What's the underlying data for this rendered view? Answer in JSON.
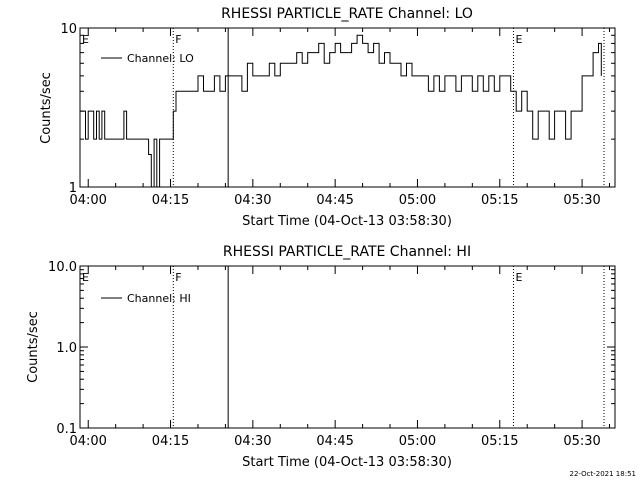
{
  "chart_data": [
    {
      "type": "line",
      "title": "RHESSI PARTICLE_RATE Channel: LO",
      "xlabel": "Start Time (04-Oct-13 03:58:30)",
      "ylabel": "Counts/sec",
      "yscale": "log",
      "ylim": [
        1,
        10
      ],
      "y_ticks": [
        "1",
        "10"
      ],
      "x_ticks": [
        "04:00",
        "04:15",
        "04:30",
        "04:45",
        "05:00",
        "05:15",
        "05:30"
      ],
      "xlim": [
        "03:58:30",
        "05:36:00"
      ],
      "legend": "Channel: LO",
      "legend_position": "top-left",
      "markers": [
        {
          "label": "E",
          "time": "03:58:30",
          "style": "dotted"
        },
        {
          "label": "F",
          "time": "04:15:30",
          "style": "dotted"
        },
        {
          "label": "",
          "time": "04:25:30",
          "style": "solid"
        },
        {
          "label": "E",
          "time": "05:17:30",
          "style": "dotted"
        },
        {
          "label": "",
          "time": "05:34:00",
          "style": "dotted"
        }
      ],
      "series": [
        {
          "name": "Channel: LO",
          "x": [
            "03:58:30",
            "03:59:00",
            "03:59:30",
            "04:00:00",
            "04:00:30",
            "04:01:00",
            "04:01:30",
            "04:02:00",
            "04:02:30",
            "04:03:00",
            "04:03:30",
            "04:04:00",
            "04:04:30",
            "04:05:00",
            "04:05:30",
            "04:06:00",
            "04:06:30",
            "04:07:00",
            "04:07:30",
            "04:08:00",
            "04:08:30",
            "04:09:00",
            "04:09:30",
            "04:10:00",
            "04:10:30",
            "04:11:00",
            "04:11:30",
            "04:12:00",
            "04:12:30",
            "04:13:00",
            "04:13:30",
            "04:14:00",
            "04:14:30",
            "04:15:00",
            "04:15:30",
            "04:16:00",
            "04:16:30",
            "04:17:00",
            "04:18:00",
            "04:19:00",
            "04:20:00",
            "04:21:00",
            "04:22:00",
            "04:23:00",
            "04:24:00",
            "04:25:00",
            "04:26:00",
            "04:27:00",
            "04:28:00",
            "04:29:00",
            "04:30:00",
            "04:31:00",
            "04:32:00",
            "04:33:00",
            "04:34:00",
            "04:35:00",
            "04:36:00",
            "04:37:00",
            "04:38:00",
            "04:39:00",
            "04:40:00",
            "04:41:00",
            "04:42:00",
            "04:43:00",
            "04:44:00",
            "04:45:00",
            "04:46:00",
            "04:47:00",
            "04:48:00",
            "04:49:00",
            "04:50:00",
            "04:51:00",
            "04:52:00",
            "04:53:00",
            "04:54:00",
            "04:55:00",
            "04:56:00",
            "04:57:00",
            "04:58:00",
            "04:59:00",
            "05:00:00",
            "05:01:00",
            "05:02:00",
            "05:03:00",
            "05:04:00",
            "05:05:00",
            "05:06:00",
            "05:07:00",
            "05:08:00",
            "05:09:00",
            "05:10:00",
            "05:11:00",
            "05:12:00",
            "05:13:00",
            "05:14:00",
            "05:15:00",
            "05:16:00",
            "05:17:00",
            "05:18:00",
            "05:19:00",
            "05:20:00",
            "05:21:00",
            "05:22:00",
            "05:23:00",
            "05:24:00",
            "05:25:00",
            "05:26:00",
            "05:27:00",
            "05:28:00",
            "05:29:00",
            "05:30:00",
            "05:31:00",
            "05:32:00",
            "05:33:00",
            "05:33:30"
          ],
          "values": [
            3,
            3,
            2,
            3,
            3,
            2,
            3,
            2,
            3,
            2,
            2,
            2,
            2,
            2,
            2,
            2,
            3,
            2,
            2,
            2,
            2,
            2,
            2,
            2,
            2,
            1.6,
            1,
            2,
            1,
            2,
            2,
            2,
            2,
            2,
            3,
            4,
            4,
            4,
            4,
            4,
            5,
            4,
            4,
            5,
            4,
            5,
            5,
            5,
            4,
            6,
            5,
            5,
            5,
            6,
            5,
            6,
            6,
            6,
            7,
            6,
            7,
            7,
            8,
            6,
            7,
            8,
            7,
            7,
            8,
            9,
            8,
            7,
            8,
            6,
            7,
            6,
            6,
            5,
            6,
            5,
            5,
            5,
            4,
            5,
            4,
            5,
            5,
            4,
            5,
            5,
            4,
            5,
            4,
            5,
            4,
            5,
            5,
            4,
            3,
            4,
            3,
            2,
            3,
            3,
            2,
            3,
            3,
            2,
            3,
            3,
            5,
            5,
            7,
            8,
            5
          ]
        }
      ]
    },
    {
      "type": "line",
      "title": "RHESSI PARTICLE_RATE Channel: HI",
      "xlabel": "Start Time (04-Oct-13 03:58:30)",
      "ylabel": "Counts/sec",
      "yscale": "log",
      "ylim": [
        0.1,
        10
      ],
      "y_ticks": [
        "0.1",
        "1.0",
        "10.0"
      ],
      "x_ticks": [
        "04:00",
        "04:15",
        "04:30",
        "04:45",
        "05:00",
        "05:15",
        "05:30"
      ],
      "xlim": [
        "03:58:30",
        "05:36:00"
      ],
      "legend": "Channel: HI",
      "legend_position": "top-left",
      "markers": [
        {
          "label": "E",
          "time": "03:58:30",
          "style": "dotted"
        },
        {
          "label": "F",
          "time": "04:15:30",
          "style": "dotted"
        },
        {
          "label": "",
          "time": "04:25:30",
          "style": "solid"
        },
        {
          "label": "E",
          "time": "05:17:30",
          "style": "dotted"
        },
        {
          "label": "",
          "time": "05:34:00",
          "style": "dotted"
        }
      ],
      "series": [
        {
          "name": "Channel: HI",
          "x": [],
          "values": []
        }
      ]
    }
  ],
  "footer": {
    "timestamp": "22-Oct-2021 18:51"
  }
}
